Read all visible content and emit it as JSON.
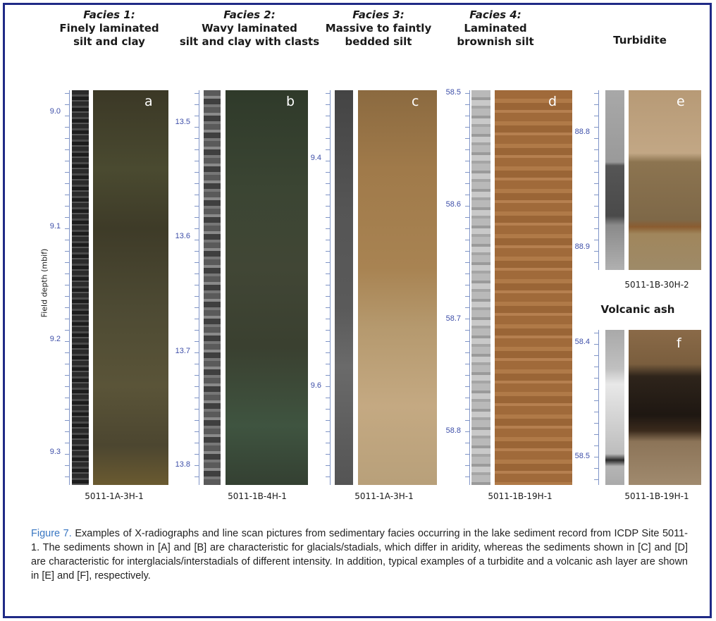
{
  "figure": {
    "panels": [
      {
        "id": "a",
        "title_italic": "Facies 1:",
        "title_lines": [
          "Finely laminated",
          "silt and clay"
        ],
        "core_id": "5011-1A-3H-1",
        "letter": "a",
        "ticks": [
          "9.0",
          "9.1",
          "9.2",
          "9.3"
        ]
      },
      {
        "id": "b",
        "title_italic": "Facies 2:",
        "title_lines": [
          "Wavy laminated",
          "silt and clay with clasts"
        ],
        "core_id": "5011-1B-4H-1",
        "letter": "b",
        "ticks": [
          "13.5",
          "13.6",
          "13.7",
          "13.8"
        ]
      },
      {
        "id": "c",
        "title_italic": "Facies 3:",
        "title_lines": [
          "Massive to faintly",
          "bedded silt"
        ],
        "core_id": "5011-1A-3H-1",
        "letter": "c",
        "ticks": [
          "9.4",
          "9.6"
        ]
      },
      {
        "id": "d",
        "title_italic": "Facies 4:",
        "title_lines": [
          "Laminated",
          "brownish silt"
        ],
        "core_id": "5011-1B-19H-1",
        "letter": "d",
        "ticks": [
          "58.5",
          "58.6",
          "58.7",
          "58.8"
        ]
      },
      {
        "id": "e",
        "title": "Turbidite",
        "core_id": "5011-1B-30H-2",
        "letter": "e",
        "ticks": [
          "88.8",
          "88.9"
        ]
      },
      {
        "id": "f",
        "title": "Volcanic ash",
        "core_id": "5011-1B-19H-1",
        "letter": "f",
        "ticks": [
          "58.4",
          "58.5"
        ]
      }
    ],
    "y_axis_label": "Field depth (mbif)"
  },
  "caption": {
    "label": "Figure 7.",
    "text": " Examples of X-radiographs and line scan pictures from sedimentary facies occurring in the lake sediment record from ICDP Site 5011-1. The sediments shown in [A] and [B] are characteristic for glacials/stadials, which differ in aridity, whereas the sediments shown in [C] and [D] are characteristic for interglacials/interstadials of different intensity. In addition, typical examples of a turbidite and a volcanic ash layer are shown in [E] and [F], respectively."
  },
  "colors": {
    "frame": "#1f2a86",
    "scale_text": "#3d4ea8",
    "caption_label": "#3a77c2"
  }
}
